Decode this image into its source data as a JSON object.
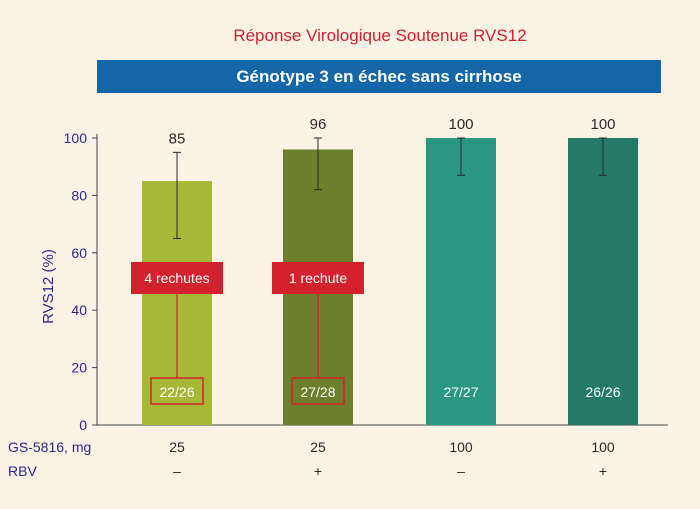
{
  "chart_data": {
    "type": "bar",
    "title": "Réponse Virologique Soutenue RVS12",
    "subtitle": "Génotype 3 en échec sans cirrhose",
    "ylabel": "RVS12 (%)",
    "ylim": [
      0,
      100
    ],
    "yticks": [
      "0",
      "20",
      "40",
      "60",
      "80",
      "100"
    ],
    "grid": false,
    "values": [
      85,
      96,
      100,
      100
    ],
    "value_labels": [
      "85",
      "96",
      "100",
      "100"
    ],
    "error_low": [
      65,
      82,
      87,
      87
    ],
    "error_high": [
      95,
      100,
      100,
      100
    ],
    "fractions": [
      "22/26",
      "27/28",
      "27/27",
      "26/26"
    ],
    "bar_colors": [
      "#a6b836",
      "#6d7e2c",
      "#2a9782",
      "#247969"
    ],
    "rows": [
      {
        "label": "GS-5816, mg",
        "values": [
          "25",
          "25",
          "100",
          "100"
        ]
      },
      {
        "label": "RBV",
        "values": [
          "–",
          "+",
          "–",
          "+"
        ]
      }
    ],
    "annotations": [
      {
        "bar": 0,
        "text": "4 rechutes"
      },
      {
        "bar": 1,
        "text": "1 rechute"
      }
    ]
  },
  "colors": {
    "axis": "#2b2b8a",
    "accent_red": "#d1222e",
    "banner": "#1565a9"
  }
}
